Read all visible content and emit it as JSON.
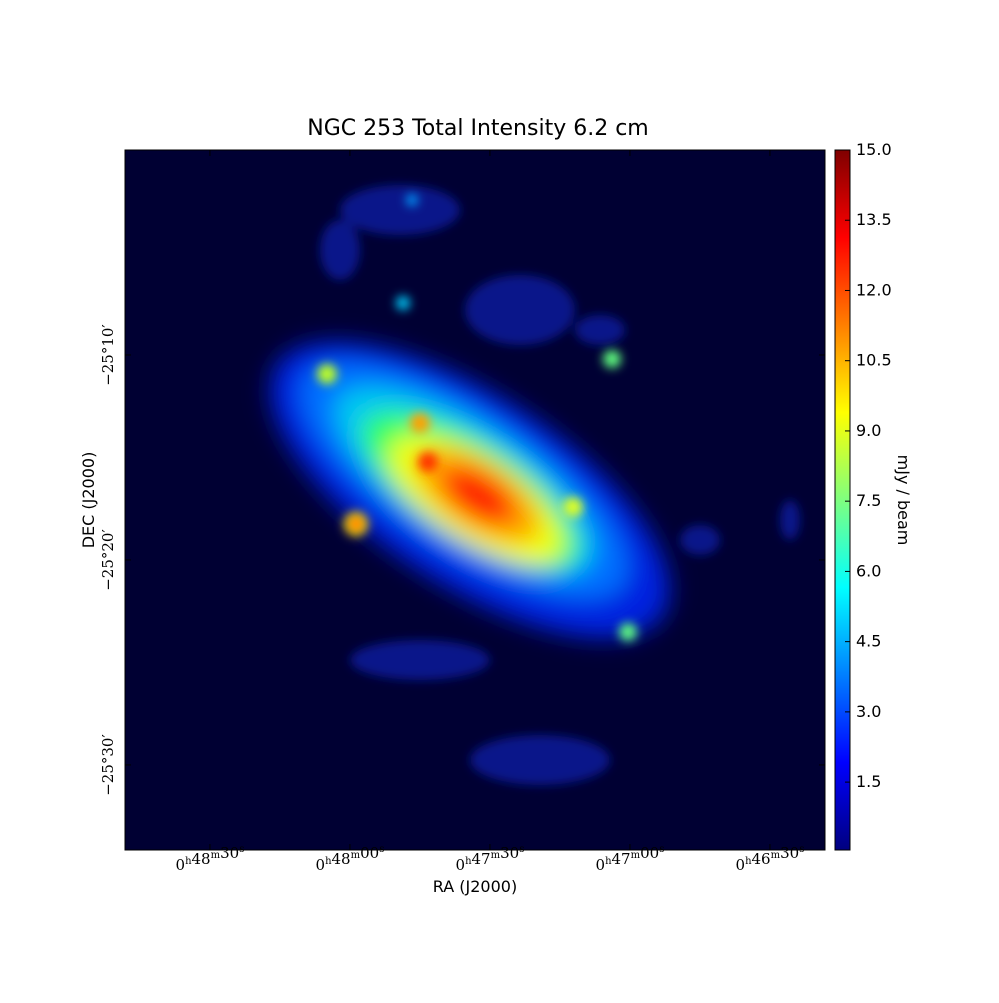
{
  "chart_data": {
    "type": "image",
    "title": "NGC 253 Total Intensity 6.2 cm",
    "x_label": "RA (J2000)",
    "y_label": "DEC (J2000)",
    "colorbar_label": "mJy / beam",
    "colormap": "jet",
    "xlim": [
      2928.2,
      2778.2
    ],
    "xticks": [
      {
        "value": 2910,
        "label": "0h48m30s"
      },
      {
        "value": 2880,
        "label": "0h48m00s"
      },
      {
        "value": 2850,
        "label": "0h47m30s"
      },
      {
        "value": 2820,
        "label": "0h47m00s"
      },
      {
        "value": 2790,
        "label": "0h46m30s"
      }
    ],
    "ylim": [
      -1534.15,
      -1500
    ],
    "yticks": [
      {
        "value": -1510,
        "label": "−25°10′"
      },
      {
        "value": -1520,
        "label": "−25°20′"
      },
      {
        "value": -1530,
        "label": "−25°30′"
      }
    ],
    "clim": [
      0.05,
      15
    ],
    "cticks": [
      1.5,
      {
        "value": 3,
        "label": "3.0"
      },
      4.5,
      {
        "value": 6,
        "label": "6.0"
      },
      7.5,
      {
        "value": 9,
        "label": "9.0"
      },
      10.5,
      {
        "value": 12,
        "label": "12.0"
      },
      13.5,
      {
        "value": 15,
        "label": "15.0"
      }
    ]
  }
}
